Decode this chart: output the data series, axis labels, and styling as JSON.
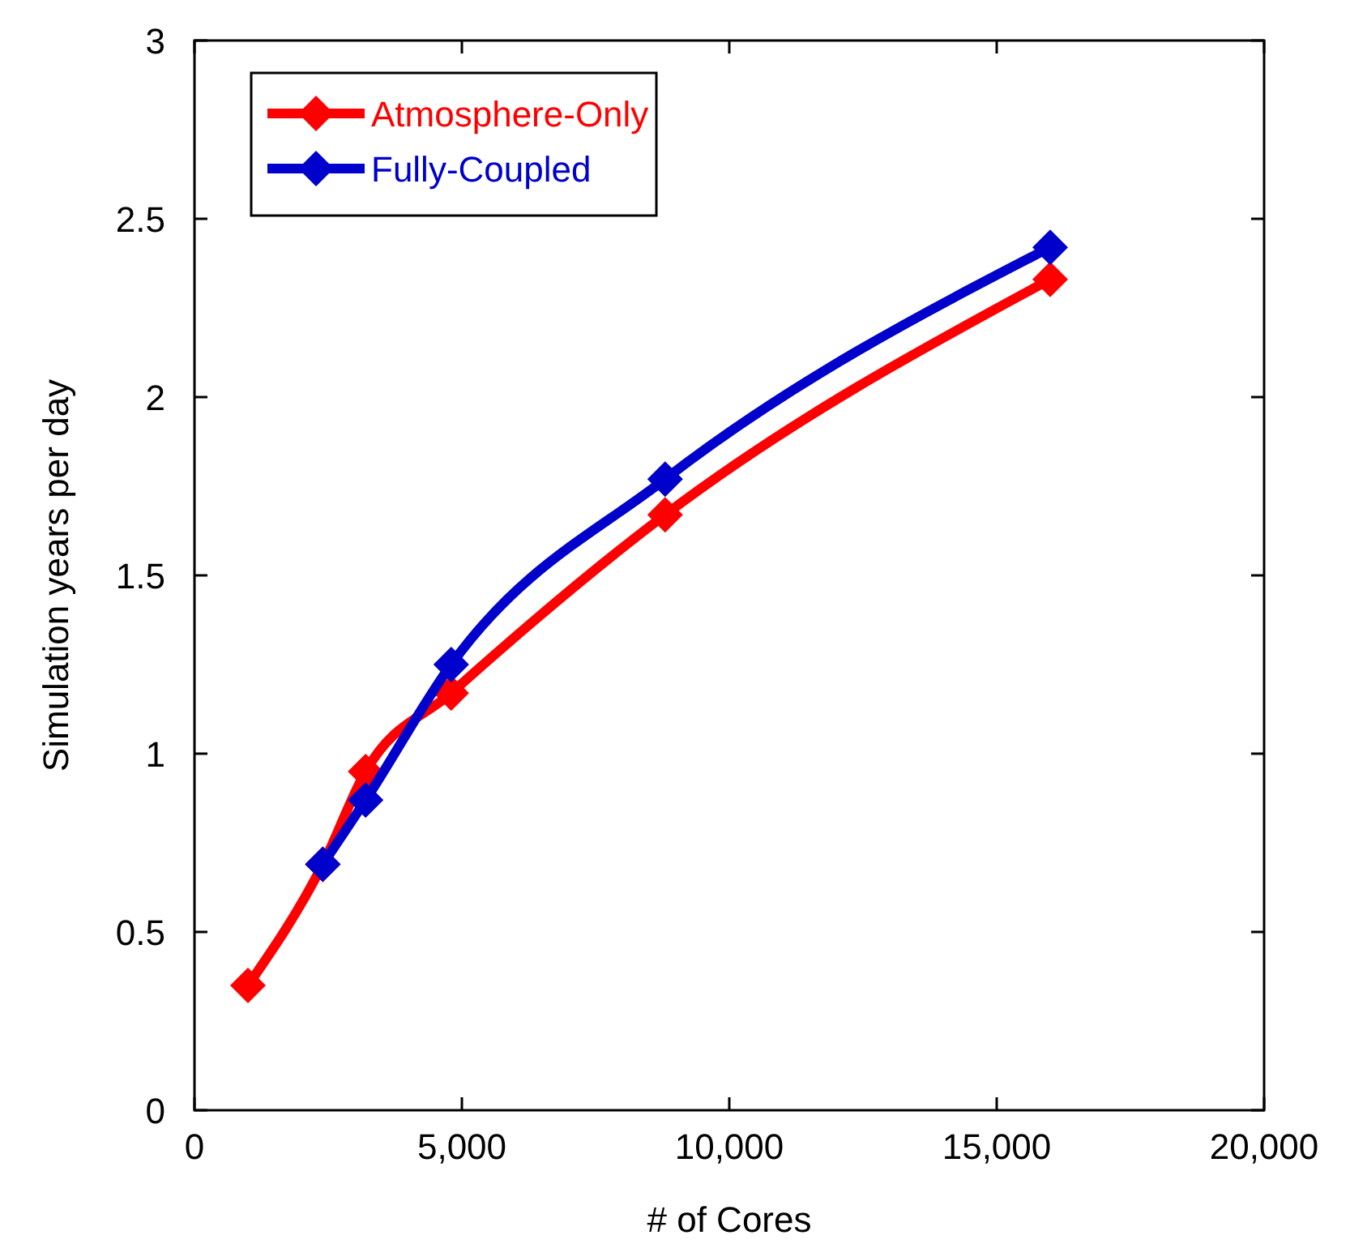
{
  "chart_data": {
    "type": "line",
    "xlabel": "# of Cores",
    "ylabel": "Simulation years per day",
    "xlim": [
      0,
      20000
    ],
    "xticks": [
      0,
      {
        "value": 5000,
        "label": "5,000"
      },
      {
        "value": 10000,
        "label": "10,000"
      },
      {
        "value": 15000,
        "label": "15,000"
      },
      {
        "value": 20000,
        "label": "20,000"
      }
    ],
    "ylim": [
      0,
      3
    ],
    "yticks": [
      0,
      0.5,
      1,
      1.5,
      2,
      2.5,
      3
    ],
    "marker": "diamond",
    "legend": "top left",
    "grid": false,
    "series": [
      {
        "name": "Atmosphere-Only",
        "color": "#ff0000",
        "x": [
          1000,
          2400,
          3200,
          4800,
          8800,
          16000
        ],
        "values": [
          0.35,
          0.69,
          0.95,
          1.17,
          1.67,
          2.33
        ]
      },
      {
        "name": "Fully-Coupled",
        "color": "#0000cc",
        "x": [
          2400,
          3200,
          4800,
          8800,
          16000
        ],
        "values": [
          0.69,
          0.87,
          1.25,
          1.77,
          2.42
        ]
      }
    ]
  }
}
